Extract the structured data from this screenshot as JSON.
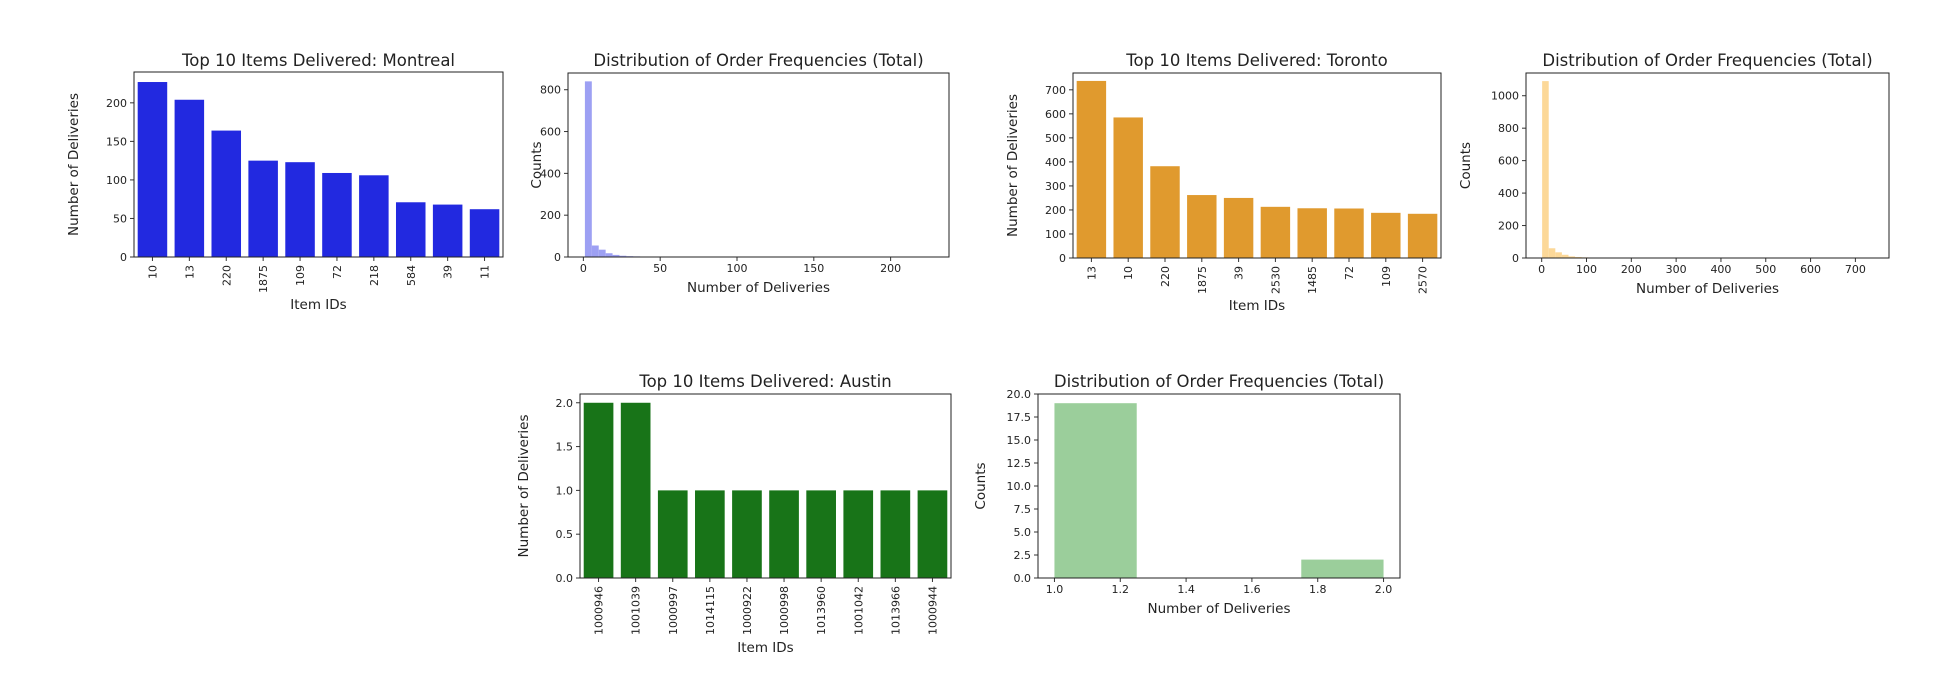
{
  "chart_data": [
    {
      "type": "bar",
      "title": "Top 10 Items Delivered: Montreal",
      "xlabel": "Item IDs",
      "ylabel": "Number of Deliveries",
      "categories": [
        "10",
        "13",
        "220",
        "1875",
        "109",
        "72",
        "218",
        "584",
        "39",
        "11"
      ],
      "values": [
        227,
        204,
        164,
        125,
        123,
        109,
        106,
        71,
        68,
        62
      ],
      "ylim": [
        0,
        240
      ],
      "yticks": [
        0,
        50,
        100,
        150,
        200
      ],
      "color": "#2229e0",
      "grid": false
    },
    {
      "type": "bar",
      "title": "Distribution of Order Frequencies (Total)",
      "xlabel": "Number of Deliveries",
      "ylabel": "Counts",
      "bins": [
        {
          "x0": 1,
          "x1": 5.5,
          "count": 840
        },
        {
          "x0": 5.5,
          "x1": 10,
          "count": 55
        },
        {
          "x0": 10,
          "x1": 14.5,
          "count": 35
        },
        {
          "x0": 14.5,
          "x1": 19,
          "count": 18
        },
        {
          "x0": 19,
          "x1": 23.5,
          "count": 10
        },
        {
          "x0": 23.5,
          "x1": 28,
          "count": 6
        },
        {
          "x0": 28,
          "x1": 32.5,
          "count": 4
        },
        {
          "x0": 32.5,
          "x1": 37,
          "count": 3
        },
        {
          "x0": 37,
          "x1": 41.5,
          "count": 2
        },
        {
          "x0": 41.5,
          "x1": 46,
          "count": 2
        },
        {
          "x0": 46,
          "x1": 50.5,
          "count": 1
        },
        {
          "x0": 50.5,
          "x1": 55,
          "count": 1
        }
      ],
      "xlim": [
        -10,
        238
      ],
      "ylim": [
        0,
        880
      ],
      "xticks": [
        0,
        50,
        100,
        150,
        200
      ],
      "yticks": [
        0,
        200,
        400,
        600,
        800
      ],
      "color": "#9da0f3",
      "grid": false
    },
    {
      "type": "bar",
      "title": "Top 10 Items Delivered: Toronto",
      "xlabel": "Item IDs",
      "ylabel": "Number of Deliveries",
      "categories": [
        "13",
        "10",
        "220",
        "1875",
        "39",
        "2530",
        "1485",
        "72",
        "109",
        "2570"
      ],
      "values": [
        737,
        585,
        382,
        262,
        250,
        213,
        207,
        206,
        188,
        184
      ],
      "ylim": [
        0,
        770
      ],
      "yticks": [
        0,
        100,
        200,
        300,
        400,
        500,
        600,
        700
      ],
      "color": "#e09a2e",
      "grid": false
    },
    {
      "type": "bar",
      "title": "Distribution of Order Frequencies (Total)",
      "xlabel": "Number of Deliveries",
      "ylabel": "Counts",
      "bins": [
        {
          "x0": 1,
          "x1": 15.7,
          "count": 1090
        },
        {
          "x0": 15.7,
          "x1": 30.4,
          "count": 60
        },
        {
          "x0": 30.4,
          "x1": 45.1,
          "count": 35
        },
        {
          "x0": 45.1,
          "x1": 59.8,
          "count": 20
        },
        {
          "x0": 59.8,
          "x1": 74.5,
          "count": 10
        },
        {
          "x0": 74.5,
          "x1": 89.2,
          "count": 6
        },
        {
          "x0": 89.2,
          "x1": 103.9,
          "count": 4
        },
        {
          "x0": 103.9,
          "x1": 118.6,
          "count": 2
        },
        {
          "x0": 118.6,
          "x1": 133.3,
          "count": 1
        }
      ],
      "xlim": [
        -35,
        775
      ],
      "ylim": [
        0,
        1140
      ],
      "xticks": [
        0,
        100,
        200,
        300,
        400,
        500,
        600,
        700
      ],
      "yticks": [
        0,
        200,
        400,
        600,
        800,
        1000
      ],
      "color": "#fcd898",
      "grid": false
    },
    {
      "type": "bar",
      "title": "Top 10 Items Delivered: Austin",
      "xlabel": "Item IDs",
      "ylabel": "Number of Deliveries",
      "categories": [
        "1000946",
        "1001039",
        "1000997",
        "1014115",
        "1000922",
        "1000998",
        "1013960",
        "1001042",
        "1013966",
        "1000944"
      ],
      "values": [
        2,
        2,
        1,
        1,
        1,
        1,
        1,
        1,
        1,
        1
      ],
      "ylim": [
        0,
        2.1
      ],
      "yticks": [
        0.0,
        0.5,
        1.0,
        1.5,
        2.0
      ],
      "color": "#187418",
      "grid": false
    },
    {
      "type": "bar",
      "title": "Distribution of Order Frequencies (Total)",
      "xlabel": "Number of Deliveries",
      "ylabel": "Counts",
      "bins": [
        {
          "x0": 1.0,
          "x1": 1.25,
          "count": 19
        },
        {
          "x0": 1.25,
          "x1": 1.5,
          "count": 0
        },
        {
          "x0": 1.5,
          "x1": 1.75,
          "count": 0
        },
        {
          "x0": 1.75,
          "x1": 2.0,
          "count": 2
        }
      ],
      "xlim": [
        0.95,
        2.05
      ],
      "ylim": [
        0,
        20
      ],
      "xticks": [
        1.0,
        1.2,
        1.4,
        1.6,
        1.8,
        2.0
      ],
      "yticks": [
        0.0,
        2.5,
        5.0,
        7.5,
        10.0,
        12.5,
        15.0,
        17.5,
        20.0
      ],
      "color": "#9bce9b",
      "grid": false
    }
  ]
}
